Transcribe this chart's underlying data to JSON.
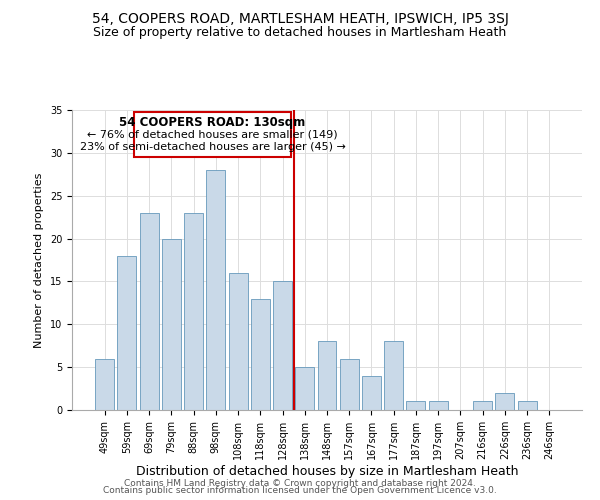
{
  "title": "54, COOPERS ROAD, MARTLESHAM HEATH, IPSWICH, IP5 3SJ",
  "subtitle": "Size of property relative to detached houses in Martlesham Heath",
  "xlabel": "Distribution of detached houses by size in Martlesham Heath",
  "ylabel": "Number of detached properties",
  "bar_labels": [
    "49sqm",
    "59sqm",
    "69sqm",
    "79sqm",
    "88sqm",
    "98sqm",
    "108sqm",
    "118sqm",
    "128sqm",
    "138sqm",
    "148sqm",
    "157sqm",
    "167sqm",
    "177sqm",
    "187sqm",
    "197sqm",
    "207sqm",
    "216sqm",
    "226sqm",
    "236sqm",
    "246sqm"
  ],
  "bar_heights": [
    6,
    18,
    23,
    20,
    23,
    28,
    16,
    13,
    15,
    5,
    8,
    6,
    4,
    8,
    1,
    1,
    0,
    1,
    2,
    1,
    0
  ],
  "bar_color": "#c9d9e8",
  "bar_edge_color": "#6699bb",
  "ylim": [
    0,
    35
  ],
  "vline_x": 8.5,
  "vline_color": "#cc0000",
  "annotation_title": "54 COOPERS ROAD: 130sqm",
  "annotation_line1": "← 76% of detached houses are smaller (149)",
  "annotation_line2": "23% of semi-detached houses are larger (45) →",
  "annotation_box_color": "#ffffff",
  "annotation_box_edge": "#cc0000",
  "footer1": "Contains HM Land Registry data © Crown copyright and database right 2024.",
  "footer2": "Contains public sector information licensed under the Open Government Licence v3.0.",
  "title_fontsize": 10,
  "subtitle_fontsize": 9,
  "xlabel_fontsize": 9,
  "ylabel_fontsize": 8,
  "tick_fontsize": 7,
  "footer_fontsize": 6.5,
  "ann_title_fontsize": 8.5,
  "ann_text_fontsize": 8
}
